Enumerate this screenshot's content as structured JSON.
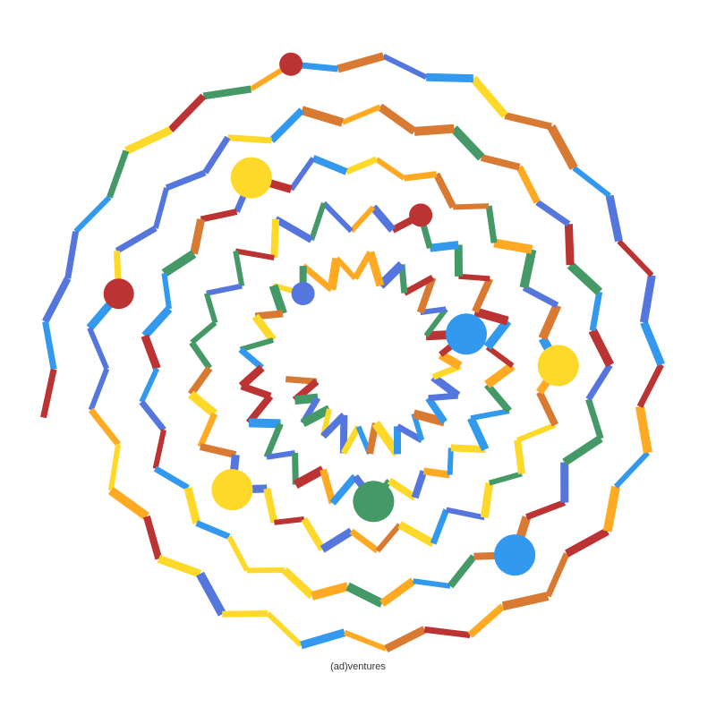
{
  "caption": "(ad)ventures",
  "palette": {
    "blue": "#3399ee",
    "periwinkle": "#5577dd",
    "green": "#449966",
    "yellow": "#ffd92a",
    "orange": "#ffaa22",
    "burnt_orange": "#d97a33",
    "red": "#bb3333"
  },
  "spiral_turns": 5,
  "nodes": [
    {
      "color": "blue",
      "kind": "large"
    },
    {
      "color": "periwinkle",
      "kind": "small"
    },
    {
      "color": "green",
      "kind": "large"
    },
    {
      "color": "red",
      "kind": "small"
    },
    {
      "color": "yellow",
      "kind": "large"
    },
    {
      "color": "yellow",
      "kind": "large"
    },
    {
      "color": "yellow",
      "kind": "large"
    },
    {
      "color": "blue",
      "kind": "large"
    },
    {
      "color": "red",
      "kind": "medium"
    },
    {
      "color": "red",
      "kind": "small"
    }
  ]
}
